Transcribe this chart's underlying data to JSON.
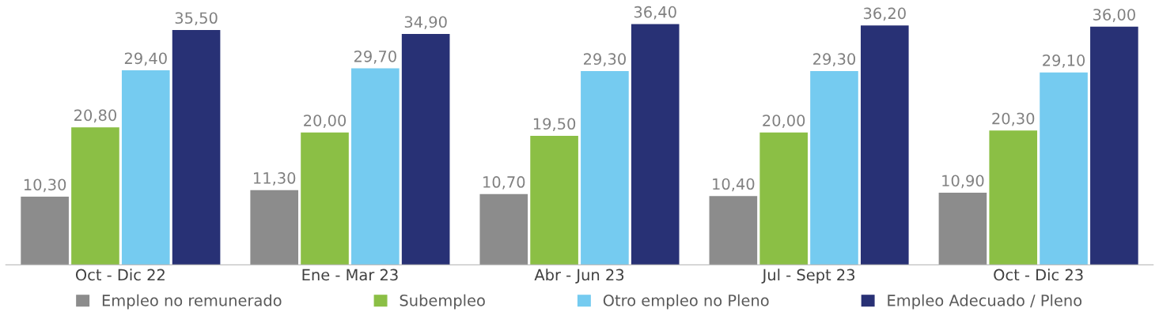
{
  "chart_data": {
    "type": "bar",
    "categories": [
      "Oct - Dic 22",
      "Ene - Mar 23",
      "Abr - Jun 23",
      "Jul - Sept 23",
      "Oct - Dic 23"
    ],
    "series": [
      {
        "name": "Empleo no remunerado",
        "color": "#8c8c8c",
        "values": [
          10.3,
          11.3,
          10.7,
          10.4,
          10.9
        ],
        "value_labels": [
          "10,30",
          "11,30",
          "10,70",
          "10,40",
          "10,90"
        ]
      },
      {
        "name": "Subempleo",
        "color": "#8bbf45",
        "values": [
          20.8,
          20.0,
          19.5,
          20.0,
          20.3
        ],
        "value_labels": [
          "20,80",
          "20,00",
          "19,50",
          "20,00",
          "20,30"
        ]
      },
      {
        "name": "Otro empleo no Pleno",
        "color": "#75cbf0",
        "values": [
          29.4,
          29.7,
          29.3,
          29.3,
          29.1
        ],
        "value_labels": [
          "29,40",
          "29,70",
          "29,30",
          "29,30",
          "29,10"
        ]
      },
      {
        "name": "Empleo Adecuado / Pleno",
        "color": "#283175",
        "values": [
          35.5,
          34.9,
          36.4,
          36.2,
          36.0
        ],
        "value_labels": [
          "35,50",
          "34,90",
          "36,40",
          "36,20",
          "36,00"
        ]
      }
    ],
    "legend": "bottom",
    "grid": false,
    "tick_labels": "x"
  }
}
